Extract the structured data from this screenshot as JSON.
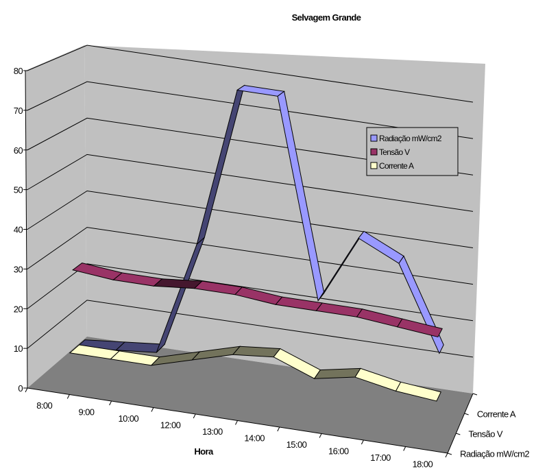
{
  "chart_data": {
    "type": "line",
    "style": "3d-ribbon",
    "title": "Selvagem Grande",
    "xlabel": "Hora",
    "ylabel": "",
    "ylim": [
      0,
      80
    ],
    "yticks": [
      "0",
      "10",
      "20",
      "30",
      "40",
      "50",
      "60",
      "70",
      "80"
    ],
    "categories": [
      "8:00",
      "9:00",
      "10:00",
      "12:00",
      "13:00",
      "14:00",
      "15:00",
      "16:00",
      "17:00",
      "18:00"
    ],
    "depth_labels": [
      "Corrente A",
      "Tensão V",
      "Radiação mW/cm2"
    ],
    "grid": true,
    "legend_position": "right",
    "series": [
      {
        "name": "Radiação mW/cm2",
        "color": "#9999ff",
        "values": [
          5,
          6,
          7,
          37,
          79,
          79,
          27,
          45,
          40,
          18
        ]
      },
      {
        "name": "Tensão V",
        "color": "#993366",
        "values": [
          26,
          25,
          25,
          26,
          26,
          25,
          25,
          25,
          24,
          23
        ]
      },
      {
        "name": "Corrente A",
        "color": "#ffffcc",
        "values": [
          5,
          5,
          5,
          8,
          11,
          12,
          8,
          10,
          8,
          7
        ]
      }
    ]
  }
}
